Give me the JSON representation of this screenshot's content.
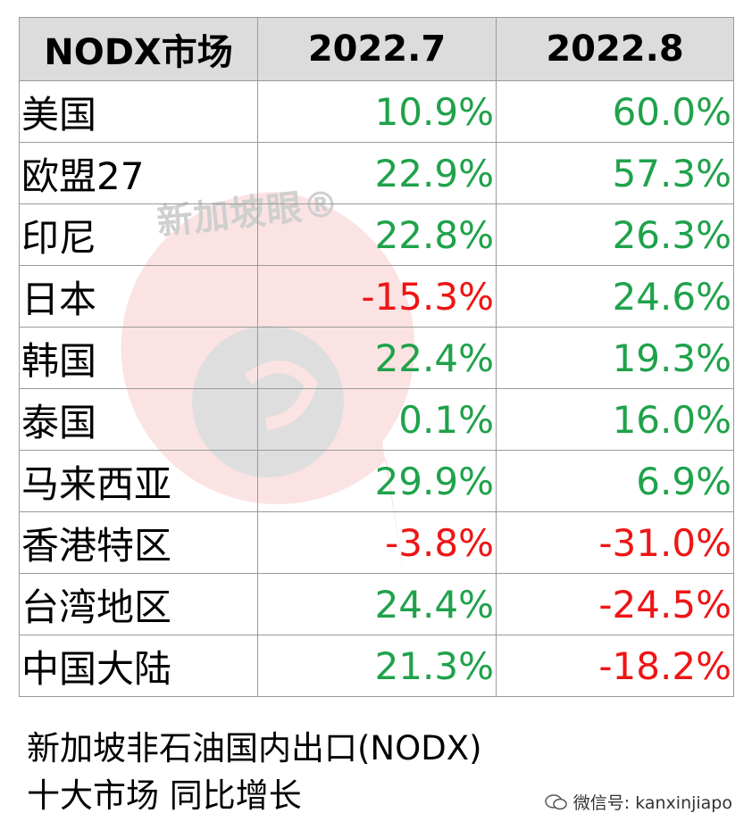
{
  "table": {
    "headers": [
      "NODX市场",
      "2022.7",
      "2022.8"
    ],
    "rows": [
      {
        "market": "美国",
        "jul": "10.9%",
        "aug": "60.0%",
        "jul_sign": "pos",
        "aug_sign": "pos"
      },
      {
        "market": "欧盟27",
        "jul": "22.9%",
        "aug": "57.3%",
        "jul_sign": "pos",
        "aug_sign": "pos"
      },
      {
        "market": "印尼",
        "jul": "22.8%",
        "aug": "26.3%",
        "jul_sign": "pos",
        "aug_sign": "pos"
      },
      {
        "market": "日本",
        "jul": "-15.3%",
        "aug": "24.6%",
        "jul_sign": "neg",
        "aug_sign": "pos"
      },
      {
        "market": "韩国",
        "jul": "22.4%",
        "aug": "19.3%",
        "jul_sign": "pos",
        "aug_sign": "pos"
      },
      {
        "market": "泰国",
        "jul": "0.1%",
        "aug": "16.0%",
        "jul_sign": "pos",
        "aug_sign": "pos"
      },
      {
        "market": "马来西亚",
        "jul": "29.9%",
        "aug": "6.9%",
        "jul_sign": "pos",
        "aug_sign": "pos"
      },
      {
        "market": "香港特区",
        "jul": "-3.8%",
        "aug": "-31.0%",
        "jul_sign": "neg",
        "aug_sign": "neg"
      },
      {
        "market": "台湾地区",
        "jul": "24.4%",
        "aug": "-24.5%",
        "jul_sign": "pos",
        "aug_sign": "neg"
      },
      {
        "market": "中国大陆",
        "jul": "21.3%",
        "aug": "-18.2%",
        "jul_sign": "pos",
        "aug_sign": "neg"
      }
    ]
  },
  "caption": {
    "line1": "新加坡非石油国内出口(NODX)",
    "line2": "十大市场 同比增长"
  },
  "watermark": {
    "text": "新加坡眼®",
    "icon": "speech-bubble-logo"
  },
  "footer": {
    "text": "微信号: kanxinjiapo",
    "icon": "wechat-icon"
  },
  "colors": {
    "positive": "#1fa24b",
    "negative": "#ee1515",
    "header_bg": "#dcdcdc",
    "border": "#9a9a9a"
  }
}
